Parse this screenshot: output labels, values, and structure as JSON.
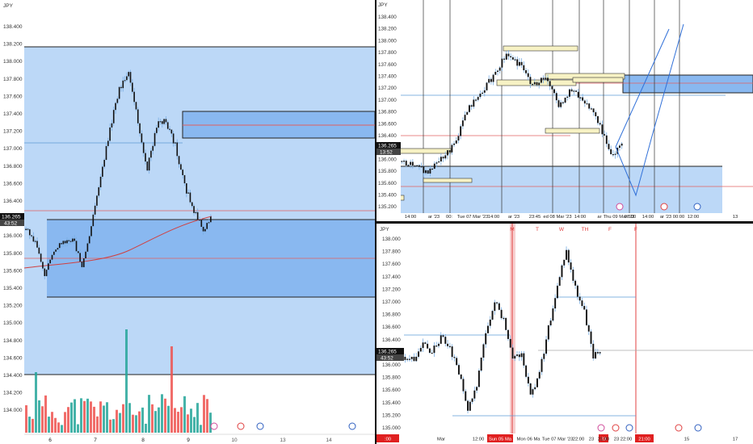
{
  "pane_left": {
    "symbol": "JPY",
    "y_ticks": [
      "138.400",
      "138.200",
      "138.000",
      "137.800",
      "137.600",
      "137.400",
      "137.200",
      "137.000",
      "136.800",
      "136.600",
      "136.400",
      "136.200",
      "136.000",
      "135.800",
      "135.600",
      "135.400",
      "135.200",
      "135.000",
      "134.800",
      "134.600",
      "134.400",
      "134.200",
      "134.000"
    ],
    "x_ticks": [
      "6",
      "7",
      "8",
      "9",
      "10",
      "13",
      "14"
    ],
    "price_badge": "136.265",
    "countdown_badge": "43:52"
  },
  "pane_top_right": {
    "symbol": "JPY",
    "y_ticks": [
      "138.400",
      "138.200",
      "138.000",
      "137.800",
      "137.600",
      "137.400",
      "137.200",
      "137.000",
      "136.800",
      "136.600",
      "136.400",
      "136.200",
      "136.000",
      "135.800",
      "135.600",
      "135.400",
      "135.200"
    ],
    "x_ticks": [
      "14:00",
      "ar '23",
      "00:",
      "Tue 07 Mar '23",
      "14:00",
      "ar '23",
      "23:45",
      "ed 08 Mar '23",
      "14:00",
      "ar",
      "Thu 09 Mar '23",
      "08:00",
      "14:00",
      "ar '23",
      "00:00",
      "12:00",
      "13"
    ],
    "price_badge": "136.265",
    "countdown_badge": "13:52"
  },
  "pane_bottom_right": {
    "symbol": "JPY",
    "y_ticks": [
      "138.000",
      "137.800",
      "137.600",
      "137.400",
      "137.200",
      "137.000",
      "136.800",
      "136.600",
      "136.400",
      "136.200",
      "136.000",
      "135.800",
      "135.600",
      "135.400",
      "135.200",
      "135.000"
    ],
    "day_labels": [
      "M",
      "T",
      "W",
      "TH",
      "F",
      "F"
    ],
    "x_ticks": [
      "Mar",
      "12:00",
      "Mon 06 Ma",
      "Tue 07 Mar '23",
      "22:00",
      "23",
      "21:00",
      "23",
      "22:00",
      "15",
      "17"
    ],
    "x_ticks_highlight": [
      ":00",
      "Sun 05 Ma",
      "23",
      "21:00"
    ],
    "price_badge": "136.265",
    "countdown_badge": "43:52"
  },
  "colors": {
    "zone_fill": "#bcd8f7",
    "zone_fill_dark": "#89b8f0",
    "candle": "#111111",
    "wick": "#79aee3",
    "vol_up": "#26a69a",
    "vol_down": "#ef5350",
    "red_line": "#e06060",
    "blue_line": "#3070d8",
    "yellow_box": "#f7f2c4",
    "session_red": "#f0a0a0"
  }
}
